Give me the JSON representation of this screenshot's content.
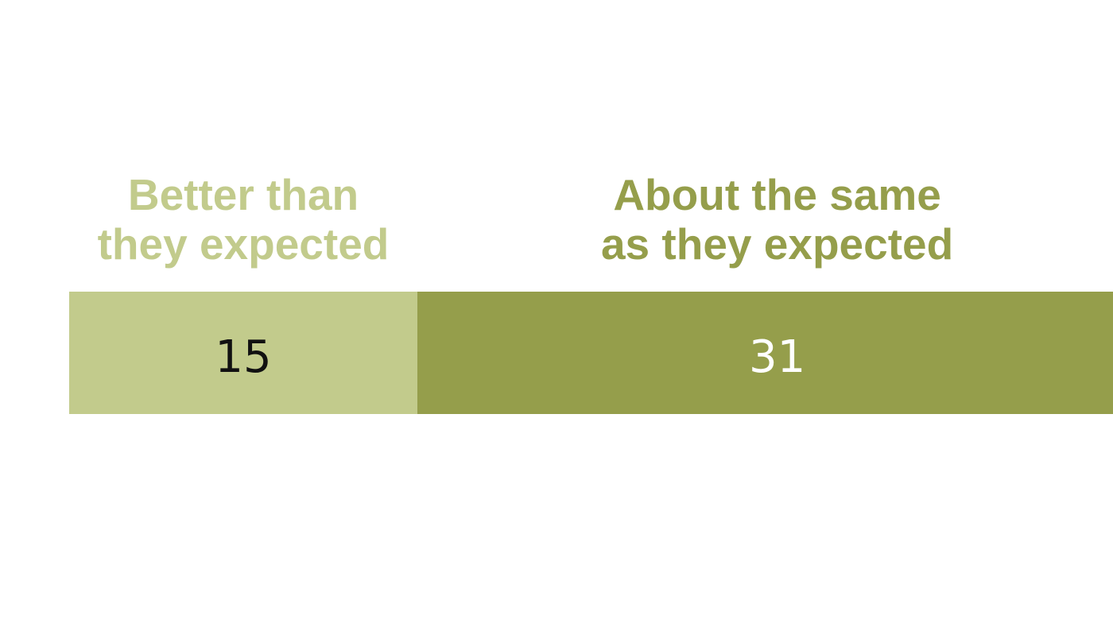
{
  "chart_data": {
    "type": "bar",
    "orientation": "horizontal-stacked",
    "categories": [
      [
        "Better than",
        "they expected"
      ],
      [
        "About the same",
        "as they expected"
      ]
    ],
    "values": [
      15,
      31
    ],
    "colors": [
      "#c2cb8c",
      "#959e4b"
    ],
    "label_colors": [
      "#c2cb8c",
      "#959e4b"
    ],
    "value_text_colors": [
      "#111111",
      "#ffffff"
    ],
    "value_labels": [
      "15",
      "31"
    ],
    "title": "",
    "xlabel": "",
    "ylabel": "",
    "grid": false,
    "legend": "none"
  }
}
